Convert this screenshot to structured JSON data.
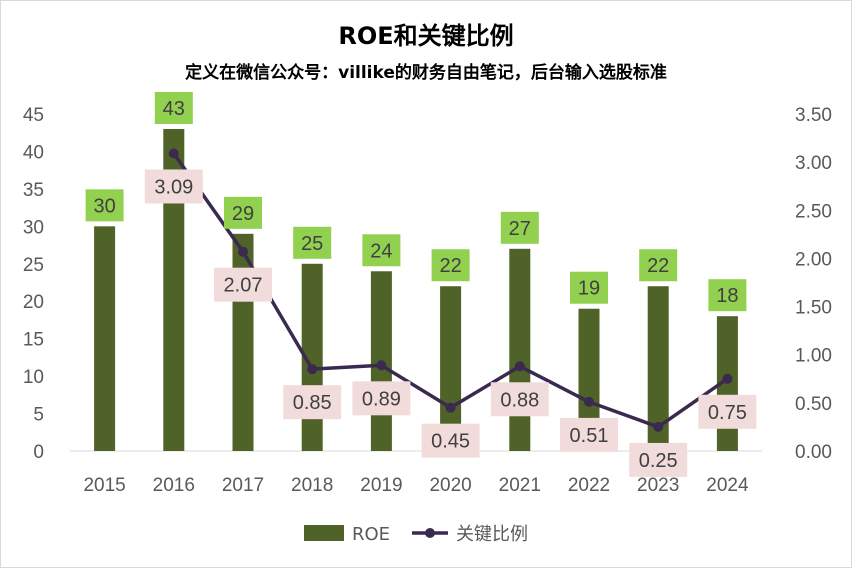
{
  "chart_data": {
    "type": "bar",
    "title": "ROE和关键比例",
    "subtitle": "定义在微信公众号：villike的财务自由笔记，后台输入选股标准",
    "categories": [
      "2015",
      "2016",
      "2017",
      "2018",
      "2019",
      "2020",
      "2021",
      "2022",
      "2023",
      "2024"
    ],
    "series": [
      {
        "name": "ROE",
        "type": "bar",
        "axis": "left",
        "values": [
          30,
          43,
          29,
          25,
          24,
          22,
          27,
          19,
          22,
          18
        ],
        "labels": [
          "30",
          "43",
          "29",
          "25",
          "24",
          "22",
          "27",
          "19",
          "22",
          "18"
        ],
        "color": "#4f6228",
        "label_bg": "#92d050"
      },
      {
        "name": "关键比例",
        "type": "line",
        "axis": "right",
        "values": [
          null,
          3.09,
          2.07,
          0.85,
          0.89,
          0.45,
          0.88,
          0.51,
          0.25,
          0.75
        ],
        "labels": [
          "",
          "3.09",
          "2.07",
          "0.85",
          "0.89",
          "0.45",
          "0.88",
          "0.51",
          "0.25",
          "0.75"
        ],
        "color": "#3b2a4f",
        "label_bg": "#f2dcdb"
      }
    ],
    "y_left": {
      "min": 0,
      "max": 45,
      "ticks": [
        "0",
        "5",
        "10",
        "15",
        "20",
        "25",
        "30",
        "35",
        "40",
        "45"
      ]
    },
    "y_right": {
      "min": 0,
      "max": 3.5,
      "ticks": [
        "0.00",
        "0.50",
        "1.00",
        "1.50",
        "2.00",
        "2.50",
        "3.00",
        "3.50"
      ]
    },
    "grid": false,
    "legend": "bottom",
    "legend_entries": [
      "ROE",
      "关键比例"
    ]
  }
}
